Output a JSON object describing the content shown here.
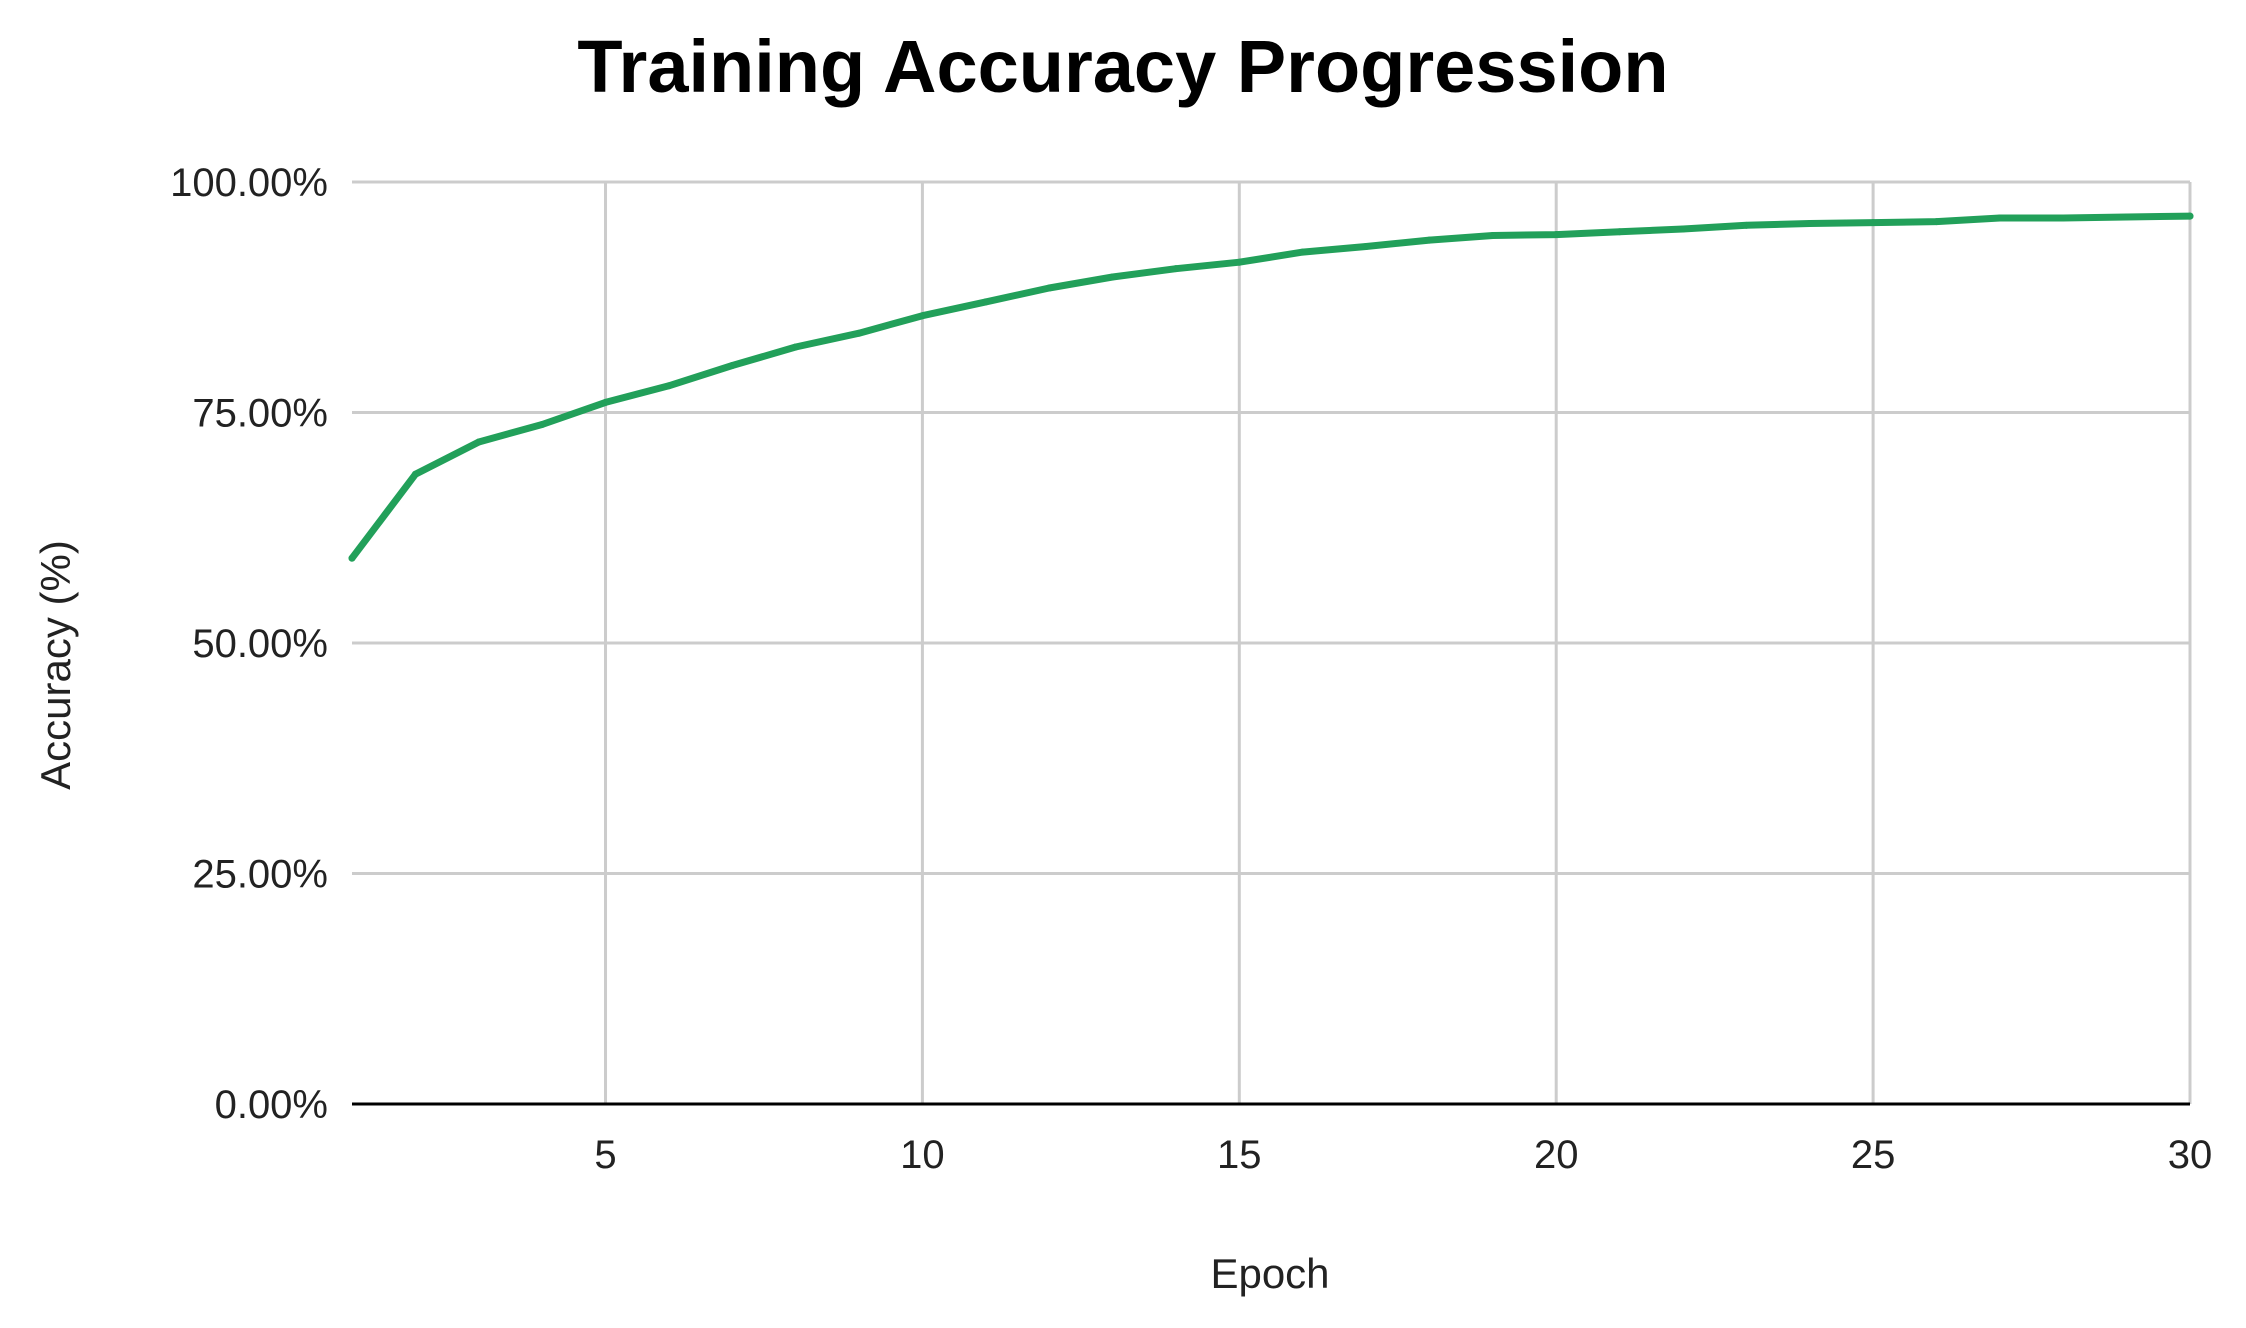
{
  "chart_data": {
    "type": "line",
    "title": "Training Accuracy Progression",
    "xlabel": "Epoch",
    "ylabel": "Accuracy (%)",
    "xlim": [
      1,
      30
    ],
    "ylim": [
      0,
      100
    ],
    "x_ticks": [
      5,
      10,
      15,
      20,
      25,
      30
    ],
    "x_tick_labels": [
      "5",
      "10",
      "15",
      "20",
      "25",
      "30"
    ],
    "y_ticks": [
      0,
      25,
      50,
      75,
      100
    ],
    "y_tick_labels": [
      "0.00%",
      "25.00%",
      "50.00%",
      "75.00%",
      "100.00%"
    ],
    "grid": true,
    "legend": "none",
    "colors": {
      "line": "#22a05a",
      "grid": "#cccccc",
      "axis": "#000000"
    },
    "series": [
      {
        "x": [
          1,
          2,
          3,
          4,
          5,
          6,
          7,
          8,
          9,
          10,
          11,
          12,
          13,
          14,
          15,
          16,
          17,
          18,
          19,
          20,
          21,
          22,
          23,
          24,
          25,
          26,
          27,
          28,
          29,
          30
        ],
        "values": [
          59.2,
          68.3,
          71.8,
          73.7,
          76.1,
          77.9,
          80.1,
          82.1,
          83.6,
          85.5,
          87.0,
          88.5,
          89.7,
          90.6,
          91.3,
          92.4,
          93.0,
          93.7,
          94.2,
          94.3,
          94.6,
          94.9,
          95.3,
          95.5,
          95.6,
          95.7,
          96.1,
          96.1,
          96.2,
          96.3
        ]
      }
    ]
  }
}
